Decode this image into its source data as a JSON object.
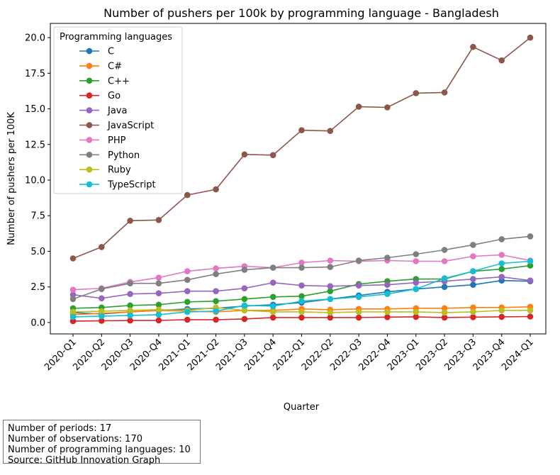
{
  "chart_data": {
    "type": "line",
    "title": "Number of pushers per 100k by programming language - Bangladesh",
    "xlabel": "Quarter",
    "ylabel": "Number of pushers per 100K",
    "categories": [
      "2020-Q1",
      "2020-Q2",
      "2020-Q3",
      "2020-Q4",
      "2021-Q1",
      "2021-Q2",
      "2021-Q3",
      "2021-Q4",
      "2022-Q1",
      "2022-Q2",
      "2022-Q3",
      "2022-Q4",
      "2023-Q1",
      "2023-Q2",
      "2023-Q3",
      "2023-Q4",
      "2024-Q1"
    ],
    "ylim": [
      -0.8,
      21
    ],
    "yticks": [
      "0.0",
      "2.5",
      "5.0",
      "7.5",
      "10.0",
      "12.5",
      "15.0",
      "17.5",
      "20.0"
    ],
    "grid": false,
    "legend": {
      "title": "Programming languages",
      "position": "top-left"
    },
    "series": [
      {
        "name": "C",
        "color": "#1f77b4",
        "values": [
          0.7,
          0.6,
          0.75,
          0.85,
          0.95,
          1.0,
          1.15,
          1.25,
          1.4,
          1.65,
          1.9,
          2.15,
          2.35,
          2.5,
          2.65,
          2.95,
          2.9
        ]
      },
      {
        "name": "C#",
        "color": "#ff7f0e",
        "values": [
          0.55,
          0.65,
          0.75,
          0.85,
          0.8,
          0.75,
          0.85,
          0.85,
          0.95,
          0.9,
          0.95,
          0.95,
          1.0,
          1.0,
          1.05,
          1.05,
          1.1
        ]
      },
      {
        "name": "C++",
        "color": "#2ca02c",
        "values": [
          1.0,
          1.05,
          1.2,
          1.25,
          1.45,
          1.5,
          1.65,
          1.8,
          1.85,
          2.2,
          2.7,
          2.9,
          3.05,
          3.05,
          3.6,
          3.75,
          4.0
        ]
      },
      {
        "name": "Go",
        "color": "#d62728",
        "values": [
          0.1,
          0.12,
          0.14,
          0.15,
          0.2,
          0.2,
          0.25,
          0.35,
          0.35,
          0.35,
          0.35,
          0.38,
          0.4,
          0.35,
          0.38,
          0.4,
          0.42
        ]
      },
      {
        "name": "Java",
        "color": "#9467bd",
        "values": [
          1.95,
          1.7,
          2.0,
          2.05,
          2.2,
          2.2,
          2.4,
          2.8,
          2.6,
          2.55,
          2.6,
          2.65,
          2.8,
          2.9,
          3.05,
          3.2,
          2.95
        ]
      },
      {
        "name": "JavaScript",
        "color": "#8c564b",
        "values": [
          4.5,
          5.3,
          7.15,
          7.2,
          8.95,
          9.35,
          11.8,
          11.75,
          13.5,
          13.45,
          15.15,
          15.1,
          16.1,
          16.15,
          19.35,
          18.4,
          20.0
        ]
      },
      {
        "name": "PHP",
        "color": "#e377c2",
        "values": [
          2.3,
          2.4,
          2.85,
          3.15,
          3.6,
          3.8,
          3.95,
          3.85,
          4.2,
          4.35,
          4.3,
          4.35,
          4.3,
          4.3,
          4.65,
          4.75,
          4.35
        ]
      },
      {
        "name": "Python",
        "color": "#7f7f7f",
        "values": [
          1.65,
          2.35,
          2.75,
          2.75,
          3.0,
          3.4,
          3.7,
          3.85,
          3.85,
          3.9,
          4.35,
          4.55,
          4.8,
          5.1,
          5.45,
          5.85,
          6.05
        ]
      },
      {
        "name": "Ruby",
        "color": "#bcbd22",
        "values": [
          0.75,
          0.8,
          0.85,
          0.9,
          0.85,
          1.05,
          0.85,
          0.75,
          0.75,
          0.7,
          0.75,
          0.75,
          0.75,
          0.7,
          0.75,
          0.85,
          0.85
        ]
      },
      {
        "name": "TypeScript",
        "color": "#17becf",
        "values": [
          0.4,
          0.45,
          0.5,
          0.55,
          0.75,
          0.8,
          1.2,
          1.15,
          1.5,
          1.65,
          1.8,
          2.0,
          2.35,
          3.1,
          3.6,
          4.15,
          4.3
        ]
      }
    ]
  },
  "info": {
    "periods": "Number of periods: 17",
    "observations": "Number of observations: 170",
    "languages": "Number of programming languages: 10",
    "source": "Source: GitHub Innovation Graph"
  }
}
